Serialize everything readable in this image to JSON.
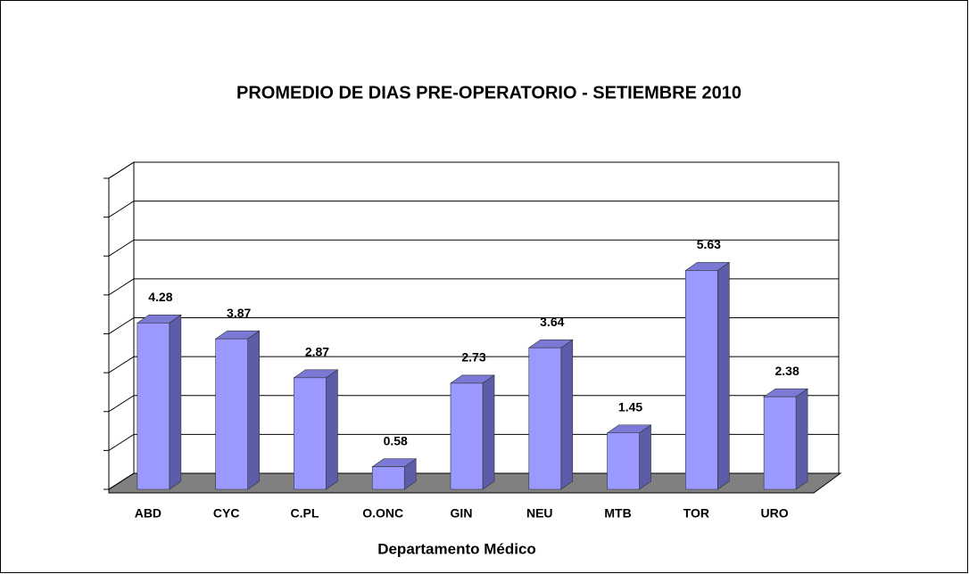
{
  "chart_data": {
    "type": "bar3d",
    "title": "PROMEDIO DE DIAS PRE-OPERATORIO  -  SETIEMBRE  2010",
    "x_label": "Departamento Médico",
    "categories": [
      "ABD",
      "CYC",
      "C.PL",
      "O.ONC",
      "GIN",
      "NEU",
      "MTB",
      "TOR",
      "URO"
    ],
    "values": [
      4.28,
      3.87,
      2.87,
      0.58,
      2.73,
      3.64,
      1.45,
      5.63,
      2.38
    ],
    "color": "#9999ff",
    "ylim": [
      0,
      8
    ],
    "yticks": [
      0,
      1,
      2,
      3,
      4,
      5,
      6,
      7,
      8
    ],
    "grid": true
  }
}
